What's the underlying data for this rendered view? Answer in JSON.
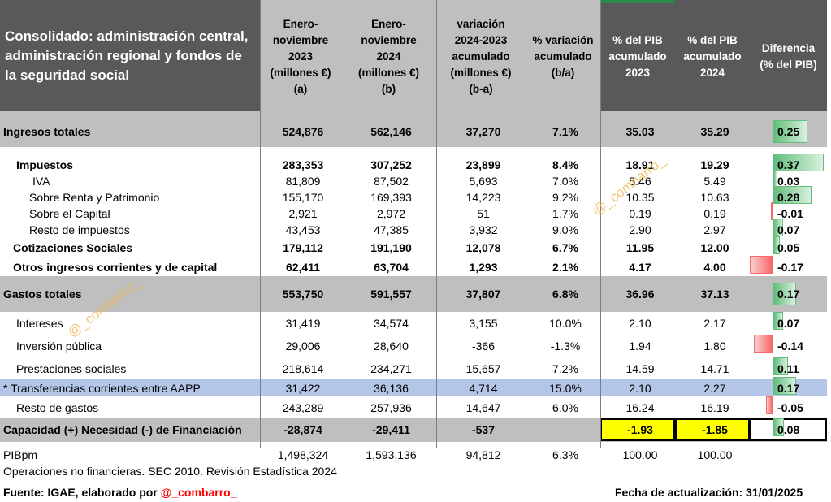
{
  "header": {
    "title": "Consolidado: administración central, administración regional y fondos de la seguridad social",
    "col1": [
      "Enero-",
      "noviembre",
      "2023",
      "(millones €)",
      "(a)"
    ],
    "col2": [
      "Enero-",
      "noviembre",
      "2024",
      "(millones €)",
      "(b)"
    ],
    "col3": [
      "variación",
      "2024-2023",
      "acumulado",
      "(millones €)",
      "(b-a)"
    ],
    "col4": [
      "% variación",
      "acumulado",
      "(b/a)"
    ],
    "col5": [
      "% del PIB",
      "acumulado",
      "2023"
    ],
    "col6": [
      "% del PIB",
      "acumulado",
      "2024"
    ],
    "col7": [
      "Diferencia",
      "(% del PIB)"
    ]
  },
  "rows": [
    {
      "label": "Ingresos totales",
      "v": [
        "524,876",
        "562,146",
        "37,270",
        "7.1%",
        "35.03",
        "35.29"
      ],
      "diff": "0.25",
      "diff_value": 0.25
    },
    {
      "label": "Impuestos",
      "v": [
        "283,353",
        "307,252",
        "23,899",
        "8.4%",
        "18.91",
        "19.29"
      ],
      "diff": "0.37",
      "diff_value": 0.37
    },
    {
      "label": "IVA",
      "v": [
        "81,809",
        "87,502",
        "5,693",
        "7.0%",
        "5.46",
        "5.49"
      ],
      "diff": "0.03",
      "diff_value": 0.03
    },
    {
      "label": "Sobre Renta y Patrimonio",
      "v": [
        "155,170",
        "169,393",
        "14,223",
        "9.2%",
        "10.35",
        "10.63"
      ],
      "diff": "0.28",
      "diff_value": 0.28
    },
    {
      "label": "Sobre el Capital",
      "v": [
        "2,921",
        "2,972",
        "51",
        "1.7%",
        "0.19",
        "0.19"
      ],
      "diff": "-0.01",
      "diff_value": -0.01
    },
    {
      "label": "Resto de impuestos",
      "v": [
        "43,453",
        "47,385",
        "3,932",
        "9.0%",
        "2.90",
        "2.97"
      ],
      "diff": "0.07",
      "diff_value": 0.07
    },
    {
      "label": "Cotizaciones Sociales",
      "v": [
        "179,112",
        "191,190",
        "12,078",
        "6.7%",
        "11.95",
        "12.00"
      ],
      "diff": "0.05",
      "diff_value": 0.05
    },
    {
      "label": "Otros ingresos corrientes y de capital",
      "v": [
        "62,411",
        "63,704",
        "1,293",
        "2.1%",
        "4.17",
        "4.00"
      ],
      "diff": "-0.17",
      "diff_value": -0.17
    },
    {
      "label": "Gastos totales",
      "v": [
        "553,750",
        "591,557",
        "37,807",
        "6.8%",
        "36.96",
        "37.13"
      ],
      "diff": "0.17",
      "diff_value": 0.17
    },
    {
      "label": "Intereses",
      "v": [
        "31,419",
        "34,574",
        "3,155",
        "10.0%",
        "2.10",
        "2.17"
      ],
      "diff": "0.07",
      "diff_value": 0.07
    },
    {
      "label": "Inversión pública",
      "v": [
        "29,006",
        "28,640",
        "-366",
        "-1.3%",
        "1.94",
        "1.80"
      ],
      "diff": "-0.14",
      "diff_value": -0.14
    },
    {
      "label": "Prestaciones sociales",
      "v": [
        "218,614",
        "234,271",
        "15,657",
        "7.2%",
        "14.59",
        "14.71"
      ],
      "diff": "0.11",
      "diff_value": 0.11
    },
    {
      "label": "* Transferencias corrientes entre AAPP",
      "v": [
        "31,422",
        "36,136",
        "4,714",
        "15.0%",
        "2.10",
        "2.27"
      ],
      "diff": "0.17",
      "diff_value": 0.17
    },
    {
      "label": "Resto de gastos",
      "v": [
        "243,289",
        "257,936",
        "14,647",
        "6.0%",
        "16.24",
        "16.19"
      ],
      "diff": "-0.05",
      "diff_value": -0.05
    },
    {
      "label": "Capacidad (+) Necesidad (-) de Financiación",
      "v": [
        "-28,874",
        "-29,411",
        "-537",
        "",
        "-1.93",
        "-1.85"
      ],
      "diff": "0.08",
      "diff_value": 0.08
    },
    {
      "label": "PIBpm",
      "v": [
        "1,498,324",
        "1,593,136",
        "94,812",
        "6.3%",
        "100.00",
        "100.00"
      ],
      "diff": "",
      "diff_value": null
    }
  ],
  "footer": {
    "note": "Operaciones no financieras. SEC 2010. Revisión Estadística 2024",
    "source_prefix": "Fuente: IGAE, elaborado por ",
    "source_handle": "@_combarro_",
    "updated": "Fecha de actualización: 31/01/2025"
  },
  "watermark": "@_combarro_",
  "colors": {
    "header_bg": "#595959",
    "total_band": "#bfbfbf",
    "highlight_band": "#b4c6e7",
    "highlight_yellow": "#ffff00",
    "positive_bar": "#63be7b",
    "negative_bar": "#f8696b",
    "handle_red": "#ff0000"
  }
}
